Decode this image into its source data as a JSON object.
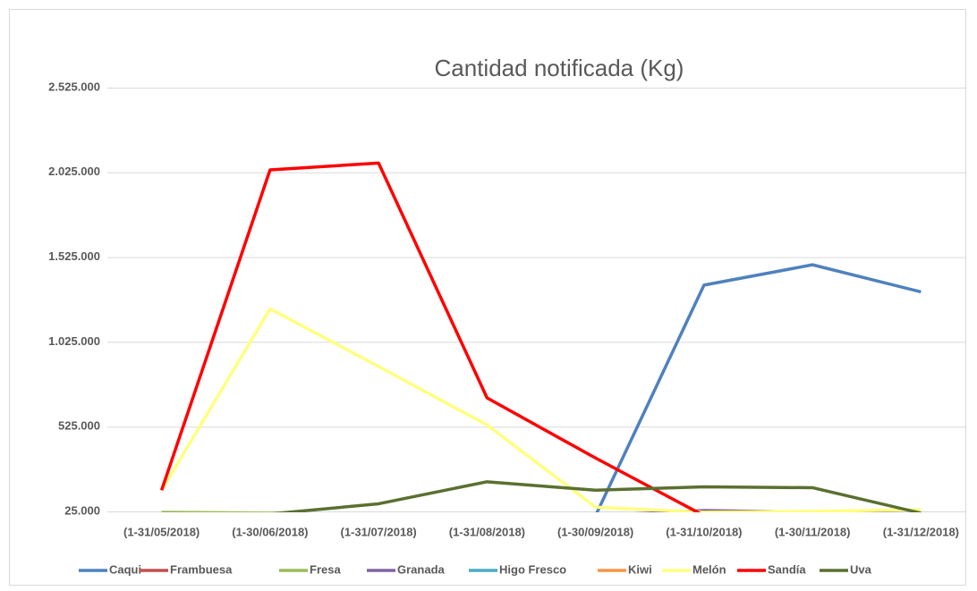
{
  "chart_data": {
    "type": "line",
    "title": "Cantidad notificada  (Kg)",
    "categories": [
      "(1-31/05/2018)",
      "(1-30/06/2018)",
      "(1-31/07/2018)",
      "(1-31/08/2018)",
      "(1-30/09/2018)",
      "(1-31/10/2018)",
      "(1-30/11/2018)",
      "(1-31/12/2018)"
    ],
    "series": [
      {
        "name": "Caqui",
        "color": "#4f81bd",
        "values": [
          0,
          0,
          0,
          0,
          0,
          1360000,
          1480000,
          1320000
        ]
      },
      {
        "name": "Frambuesa",
        "color": "#c0504d",
        "values": [
          0,
          0,
          0,
          0,
          0,
          0,
          0,
          0
        ]
      },
      {
        "name": "Fresa",
        "color": "#9bbb59",
        "values": [
          20000,
          15000,
          0,
          0,
          0,
          0,
          0,
          0
        ]
      },
      {
        "name": "Granada",
        "color": "#8064a2",
        "values": [
          0,
          0,
          0,
          0,
          0,
          30000,
          20000,
          10000
        ]
      },
      {
        "name": "Higo Fresco",
        "color": "#4bacc6",
        "values": [
          0,
          0,
          0,
          0,
          0,
          0,
          0,
          0
        ]
      },
      {
        "name": "Kiwi",
        "color": "#f79646",
        "values": [
          0,
          0,
          0,
          0,
          0,
          0,
          0,
          0
        ]
      },
      {
        "name": "Melón",
        "color": "#ffff80",
        "values": [
          150000,
          1220000,
          880000,
          535000,
          50000,
          20000,
          25000,
          35000
        ]
      },
      {
        "name": "Sandía",
        "color": "#ff0000",
        "values": [
          150000,
          2040000,
          2080000,
          695000,
          340000,
          0,
          0,
          0
        ]
      },
      {
        "name": "Uva",
        "color": "#5a7030",
        "values": [
          0,
          10000,
          70000,
          200000,
          150000,
          170000,
          165000,
          15000
        ]
      }
    ],
    "ylim": [
      25000,
      2525000
    ],
    "yticks": [
      {
        "value": 25000,
        "label": "25.000"
      },
      {
        "value": 525000,
        "label": "525.000"
      },
      {
        "value": 1025000,
        "label": "1.025.000"
      },
      {
        "value": 1525000,
        "label": "1.525.000"
      },
      {
        "value": 2025000,
        "label": "2.025.000"
      },
      {
        "value": 2525000,
        "label": "2.525.000"
      }
    ],
    "grid": true,
    "legend": "bottom"
  }
}
